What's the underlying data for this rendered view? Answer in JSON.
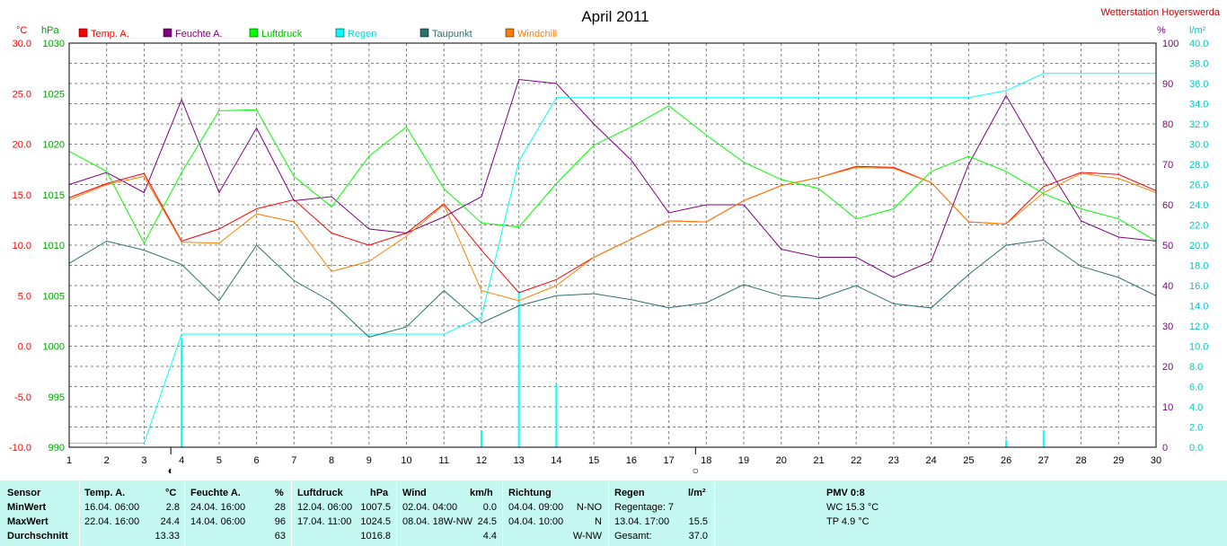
{
  "chart_data": {
    "type": "line",
    "title": "April 2011",
    "station": "Wetterstation Hoyerswerda",
    "axis_units": {
      "temp": "°C",
      "pressure": "hPa",
      "humidity": "%",
      "rain": "l/m²"
    },
    "x": [
      1,
      2,
      3,
      4,
      5,
      6,
      7,
      8,
      9,
      10,
      11,
      12,
      13,
      14,
      15,
      16,
      17,
      18,
      19,
      20,
      21,
      22,
      23,
      24,
      25,
      26,
      27,
      28,
      29,
      30
    ],
    "xlim": [
      1,
      30
    ],
    "y_temp": {
      "lim": [
        -10,
        30
      ],
      "ticks": [
        "30.0",
        "25.0",
        "20.0",
        "15.0",
        "10.0",
        "5.0",
        "0.0",
        "-5.0",
        "-10.0"
      ]
    },
    "y_pressure": {
      "lim": [
        990,
        1030
      ],
      "ticks": [
        "1030",
        "1025",
        "1020",
        "1015",
        "1010",
        "1005",
        "1000",
        "995",
        "990"
      ]
    },
    "y_humidity": {
      "lim": [
        0,
        100
      ],
      "ticks": [
        "100",
        "90",
        "80",
        "70",
        "60",
        "50",
        "40",
        "30",
        "20",
        "10",
        "0"
      ]
    },
    "y_rain": {
      "lim": [
        0,
        40
      ],
      "ticks": [
        "40.0",
        "38.0",
        "36.0",
        "34.0",
        "32.0",
        "30.0",
        "28.0",
        "26.0",
        "24.0",
        "22.0",
        "20.0",
        "18.0",
        "16.0",
        "14.0",
        "12.0",
        "10.0",
        "8.0",
        "6.0",
        "4.0",
        "2.0",
        "0.0"
      ]
    },
    "grid": true,
    "legend": "top",
    "series": [
      {
        "name": "Temp. A.",
        "color": "#ff0000",
        "axis": "temp",
        "values": [
          14.7,
          16.1,
          17.1,
          10.4,
          11.6,
          13.6,
          14.5,
          11.2,
          10.0,
          11.2,
          14.1,
          9.5,
          5.3,
          6.6,
          8.8,
          10.6,
          12.4,
          12.3,
          14.4,
          15.9,
          16.7,
          17.8,
          17.7,
          16.2,
          12.3,
          12.1,
          15.8,
          17.2,
          17.0,
          15.4
        ]
      },
      {
        "name": "Feuchte A.",
        "color": "#800080",
        "axis": "humidity",
        "values": [
          65,
          68,
          63,
          86,
          63,
          79,
          61,
          62,
          54,
          53,
          57,
          62,
          91,
          90,
          80,
          71,
          58,
          60,
          60,
          49,
          47,
          47,
          42,
          46,
          70,
          87,
          71,
          56,
          52,
          51
        ]
      },
      {
        "name": "Luftdruck",
        "color": "#00ff00",
        "axis": "pressure",
        "values": [
          1019.3,
          1017.3,
          1010.2,
          1017.2,
          1023.3,
          1023.4,
          1016.8,
          1013.8,
          1018.8,
          1021.7,
          1015.6,
          1012.2,
          1011.8,
          1016.1,
          1019.9,
          1021.7,
          1023.8,
          1020.9,
          1018.2,
          1016.5,
          1015.6,
          1012.6,
          1013.6,
          1017.3,
          1018.8,
          1017.3,
          1015.1,
          1013.6,
          1012.6,
          1010.4
        ]
      },
      {
        "name": "Regen",
        "color": "#00ffff",
        "axis": "rain",
        "values": [
          0.4,
          0.4,
          0.4,
          11.2,
          11.2,
          11.2,
          11.2,
          11.2,
          11.2,
          11.2,
          11.2,
          12.9,
          28.3,
          34.6,
          34.6,
          34.6,
          34.6,
          34.6,
          34.6,
          34.6,
          34.6,
          34.6,
          34.6,
          34.6,
          34.6,
          35.3,
          37.0,
          37.0,
          37.0,
          37.0
        ]
      },
      {
        "name": "Taupunkt",
        "color": "#2e7070",
        "axis": "temp",
        "values": [
          8.2,
          10.4,
          9.5,
          8.1,
          4.5,
          10.0,
          6.5,
          4.4,
          0.9,
          1.9,
          5.5,
          2.3,
          4.0,
          5.0,
          5.2,
          4.6,
          3.8,
          4.3,
          6.1,
          5.0,
          4.7,
          6.0,
          4.2,
          3.8,
          7.1,
          10.0,
          10.5,
          7.9,
          6.8,
          5.0
        ]
      },
      {
        "name": "Windchill",
        "color": "#ff8000",
        "axis": "temp",
        "values": [
          14.5,
          16.0,
          16.8,
          10.3,
          10.2,
          13.1,
          12.3,
          7.4,
          8.4,
          10.9,
          14.0,
          5.5,
          4.5,
          6.0,
          8.8,
          10.6,
          12.4,
          12.3,
          14.4,
          15.9,
          16.7,
          17.7,
          17.6,
          16.2,
          12.3,
          12.1,
          15.2,
          17.1,
          16.6,
          15.2
        ]
      }
    ],
    "daily_rain": {
      "color": "#00ffff",
      "values": [
        0,
        0,
        0,
        10.8,
        0,
        0,
        0,
        0,
        0,
        0,
        0,
        1.7,
        15.5,
        6.3,
        0,
        0,
        0,
        0,
        0,
        0,
        0,
        0,
        0,
        0,
        0,
        0.7,
        1.7,
        0,
        0,
        0
      ]
    },
    "moon_phases": [
      {
        "day": 4,
        "symbol": "◐"
      },
      {
        "day": 18,
        "symbol": "○"
      }
    ]
  },
  "stats": {
    "headers": {
      "sensor": "Sensor",
      "temp": "Temp. A.",
      "temp_unit": "°C",
      "hum": "Feuchte A.",
      "hum_unit": "%",
      "press": "Luftdruck",
      "press_unit": "hPa",
      "wind": "Wind",
      "wind_unit": "km/h",
      "dir": "Richtung",
      "rain": "Regen",
      "rain_unit": "l/m²",
      "pmv": "PMV 0:8"
    },
    "rows": {
      "min": "MinWert",
      "max": "MaxWert",
      "avg": "Durchschnitt"
    },
    "temp": {
      "min_time": "16.04.  06:00",
      "min_val": "2.8",
      "max_time": "22.04.  16:00",
      "max_val": "24.4",
      "avg": "13.33"
    },
    "hum": {
      "min_time": "24.04.  16:00",
      "min_val": "28",
      "max_time": "14.04.  06:00",
      "max_val": "96",
      "avg": "63"
    },
    "press": {
      "min_time": "12.04.  06:00",
      "min_val": "1007.5",
      "max_time": "17.04.  11:00",
      "max_val": "1024.5",
      "avg": "1016.8"
    },
    "wind": {
      "min_time": "02.04.  04:00",
      "min_val": "0.0",
      "max_time": "08.04.  18W-NW",
      "max_val": "24.5",
      "avg": "4.4"
    },
    "dir": {
      "min_time": "04.04.  09:00",
      "min_val": "N-NO",
      "max_time": "04.04.  10:00",
      "max_val": "N",
      "avg": "W-NW"
    },
    "rain": {
      "days": "Regentage: 7",
      "max_time": "13.04.  17:00",
      "max_val": "15.5",
      "total_label": "Gesamt:",
      "total_val": "37.0"
    },
    "pmv": {
      "wc": "WC 15.3 °C",
      "tp": "TP 4.9 °C"
    }
  }
}
